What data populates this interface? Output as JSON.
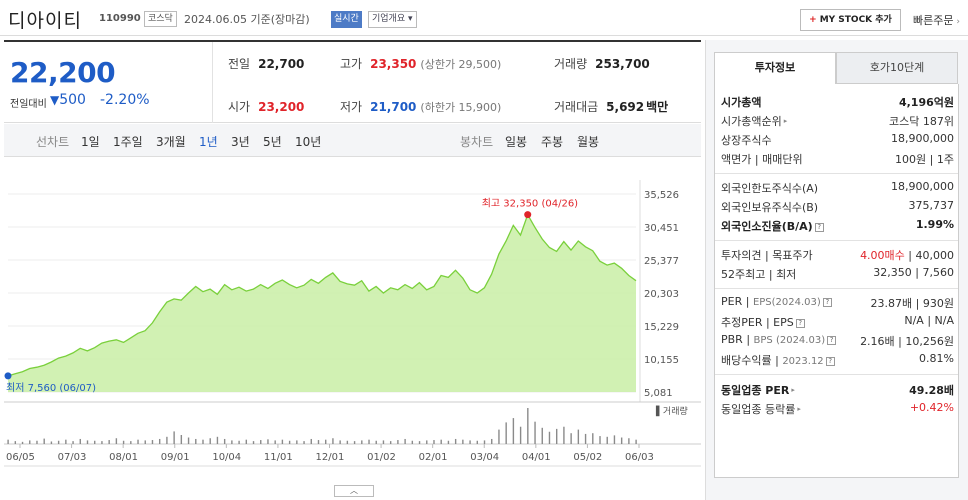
{
  "header": {
    "name": "디아이티",
    "code": "110990",
    "market": "코스닥",
    "date": "2024.06.05 기준(장마감)",
    "realtime": "실시간",
    "overview": "기업개요",
    "mystock": "MY STOCK 추가",
    "quick_order": "빠른주문"
  },
  "summary": {
    "price": "22,200",
    "change_label": "전일대비",
    "change": "500",
    "change_pct": "-2.20%",
    "prev_close_label": "전일",
    "prev_close": "22,700",
    "open_label": "시가",
    "open": "23,200",
    "high_label": "고가",
    "high": "23,350",
    "upper_limit": "(상한가 29,500)",
    "low_label": "저가",
    "low": "21,700",
    "lower_limit": "(하한가 15,900)",
    "volume_label": "거래량",
    "volume": "253,700",
    "amount_label": "거래대금",
    "amount": "5,692",
    "amount_unit": "백만"
  },
  "period_tabs": {
    "line_label": "선차트",
    "line": [
      "1일",
      "1주일",
      "3개월",
      "1년",
      "3년",
      "5년",
      "10년"
    ],
    "selected": "1년",
    "candle_label": "봉차트",
    "candle": [
      "일봉",
      "주봉",
      "월봉"
    ]
  },
  "chart_data": {
    "type": "area",
    "x_ticks": [
      "06/05",
      "07/03",
      "08/01",
      "09/01",
      "10/04",
      "11/01",
      "12/01",
      "01/02",
      "02/01",
      "03/04",
      "04/01",
      "05/02",
      "06/03"
    ],
    "y_ticks": [
      "35,526",
      "30,451",
      "25,377",
      "20,303",
      "15,229",
      "10,155",
      "5,081"
    ],
    "ylim": [
      5081,
      35526
    ],
    "values": [
      7560,
      7900,
      8200,
      8700,
      8900,
      9200,
      9700,
      10300,
      10600,
      11100,
      11800,
      11400,
      11900,
      12600,
      12900,
      13100,
      12700,
      13400,
      14100,
      14500,
      15700,
      17400,
      18900,
      19400,
      19200,
      20300,
      21300,
      20500,
      20900,
      20100,
      21600,
      20800,
      21200,
      20600,
      20900,
      21600,
      21000,
      21800,
      22300,
      21600,
      21100,
      21500,
      22400,
      21800,
      22700,
      23400,
      22100,
      21700,
      21500,
      22200,
      20600,
      21300,
      20300,
      21100,
      20800,
      21600,
      21000,
      21900,
      20800,
      21300,
      23000,
      22700,
      23800,
      22600,
      20800,
      20300,
      21100,
      23200,
      26300,
      28300,
      30700,
      29200,
      32350,
      30400,
      28600,
      27300,
      26700,
      28200,
      26900,
      28300,
      27400,
      26800,
      25200,
      24600,
      24900,
      24100,
      23000,
      22200
    ],
    "volume": [
      12,
      8,
      6,
      10,
      9,
      15,
      7,
      9,
      12,
      8,
      14,
      10,
      9,
      8,
      11,
      16,
      9,
      8,
      12,
      10,
      11,
      14,
      20,
      35,
      25,
      18,
      14,
      12,
      16,
      20,
      14,
      10,
      9,
      12,
      8,
      11,
      13,
      10,
      12,
      9,
      10,
      8,
      14,
      11,
      12,
      16,
      10,
      9,
      8,
      10,
      12,
      9,
      10,
      8,
      11,
      14,
      9,
      8,
      10,
      11,
      12,
      9,
      14,
      12,
      10,
      9,
      10,
      14,
      40,
      60,
      72,
      48,
      100,
      62,
      45,
      34,
      42,
      48,
      30,
      40,
      28,
      30,
      22,
      20,
      24,
      18,
      16,
      12
    ],
    "volume_label": "거래량",
    "max_label": "최고 32,350 (04/26)",
    "min_label": "최저 7,560 (06/07)",
    "line_color": "#7ad03c",
    "fill_color": "#c9efa6"
  },
  "right_panel": {
    "tab_active": "투자정보",
    "tab_other": "호가10단계",
    "rows": [
      {
        "k": "시가총액",
        "v": "4,196억원"
      },
      {
        "k": "시가총액순위",
        "v": "코스닥 187위"
      },
      {
        "k": "상장주식수",
        "v": "18,900,000"
      },
      {
        "k": "액면가",
        "k2": "매매단위",
        "v": "100원",
        "v2": "1주"
      },
      {
        "k": "외국인한도주식수(A)",
        "v": "18,900,000"
      },
      {
        "k": "외국인보유주식수(B)",
        "v": "375,737"
      },
      {
        "k": "외국인소진율(B/A)",
        "v": "1.99%"
      },
      {
        "k": "투자의견",
        "k2": "목표주가",
        "v": "4.00매수",
        "v2": "40,000"
      },
      {
        "k": "52주최고",
        "k2": "최저",
        "v": "32,350",
        "v2": "7,560"
      },
      {
        "k": "PER",
        "k2": "EPS(2024.03)",
        "v": "23.87배",
        "v2": "930원"
      },
      {
        "k": "추정PER",
        "k2": "EPS",
        "v": "N/A",
        "v2": "N/A"
      },
      {
        "k": "PBR",
        "k2": "BPS (2024.03)",
        "v": "2.16배",
        "v2": "10,256원"
      },
      {
        "k": "배당수익률",
        "k2": "2023.12",
        "v": "0.81%"
      },
      {
        "k": "동일업종 PER",
        "v": "49.28배"
      },
      {
        "k": "동일업종 등락률",
        "v": "+0.42%"
      }
    ]
  }
}
